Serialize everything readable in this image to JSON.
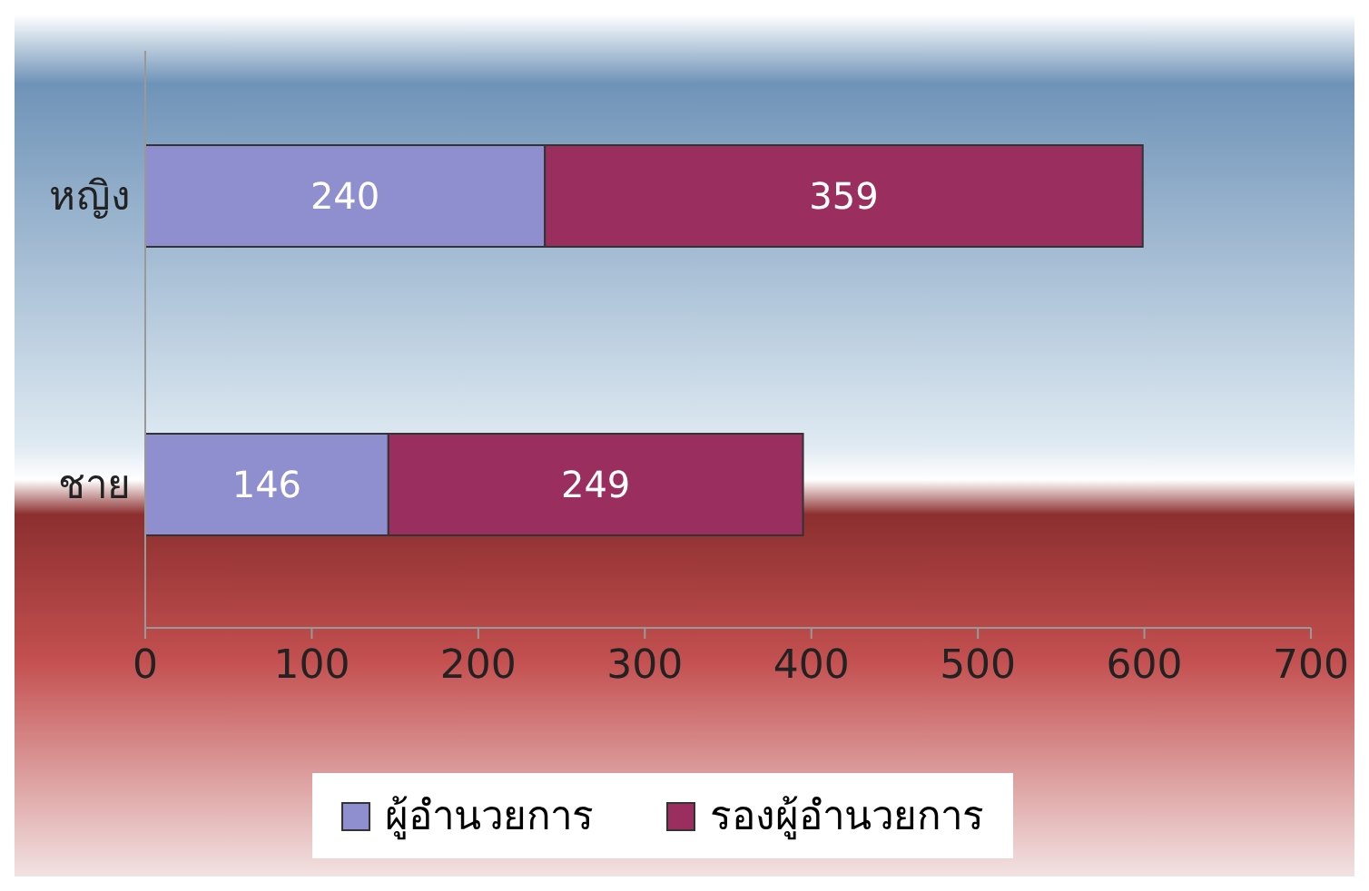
{
  "chart_data": {
    "type": "bar",
    "orientation": "horizontal",
    "stacked": true,
    "categories": [
      "หญิง",
      "ชาย"
    ],
    "series": [
      {
        "name": "ผู้อำนวยการ",
        "color": "#8f8fd0",
        "values": [
          240,
          146
        ]
      },
      {
        "name": "รองผู้อำนวยการ",
        "color": "#9a2f5f",
        "values": [
          359,
          249
        ]
      }
    ],
    "xlim": [
      0,
      700
    ],
    "xticks": [
      0,
      100,
      200,
      300,
      400,
      500,
      600,
      700
    ],
    "data_labels": true,
    "legend": "bottom",
    "grid": false
  }
}
